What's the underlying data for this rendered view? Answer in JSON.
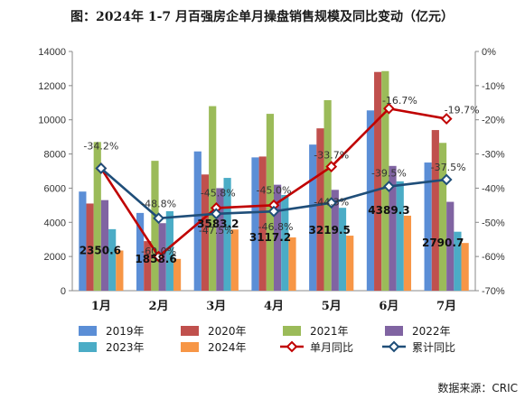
{
  "title": "图：2024年 1-7 月百强房企单月操盘销售规模及同比变动（亿元）",
  "source": "数据来源：CRIC",
  "colors": {
    "2019年": "#5b8ed6",
    "2020年": "#c0504d",
    "2021年": "#9bbb59",
    "2022年": "#8064a2",
    "2023年": "#4bacc6",
    "2024年": "#f79646",
    "单月同比": "#c00000",
    "累计同比": "#1f4e79"
  },
  "chart_data": {
    "type": "bar",
    "categories": [
      "1月",
      "2月",
      "3月",
      "4月",
      "5月",
      "6月",
      "7月"
    ],
    "ylim": [
      0,
      14000
    ],
    "y_ticks": [
      "0",
      "2000",
      "4000",
      "6000",
      "8000",
      "10000",
      "12000",
      "14000"
    ],
    "y2lim": [
      -70,
      0
    ],
    "y2_ticks": [
      "0%",
      "-10%",
      "-20%",
      "-30%",
      "-40%",
      "-50%",
      "-60%",
      "-70%"
    ],
    "series": [
      {
        "name": "2019年",
        "values": [
          5800,
          4550,
          8150,
          7800,
          8550,
          10550,
          7500
        ]
      },
      {
        "name": "2020年",
        "values": [
          5100,
          2900,
          6800,
          7850,
          9500,
          12800,
          9400
        ]
      },
      {
        "name": "2021年",
        "values": [
          8700,
          7600,
          10800,
          10350,
          11150,
          12850,
          8650
        ]
      },
      {
        "name": "2022年",
        "values": [
          5300,
          3950,
          6000,
          6200,
          5900,
          7300,
          5200
        ]
      },
      {
        "name": "2023年",
        "values": [
          3600,
          4650,
          6600,
          5600,
          4850,
          6400,
          3450
        ]
      },
      {
        "name": "2024年",
        "values": [
          2350.6,
          1858.6,
          3583.2,
          3117.2,
          3219.5,
          4389.3,
          2790.7
        ]
      }
    ],
    "value_labels": [
      "2350.6",
      "1858.6",
      "3583.2",
      "3117.2",
      "3219.5",
      "4389.3",
      "2790.7"
    ],
    "lines": [
      {
        "name": "单月同比",
        "values": [
          -34.2,
          -60.0,
          -45.8,
          -45.0,
          -33.7,
          -16.7,
          -19.7
        ],
        "labels": [
          "-34.2%",
          "-60.0%",
          "-45.8%",
          "-45.0%",
          "-33.7%",
          "-16.7%",
          "-19.7%"
        ]
      },
      {
        "name": "累计同比",
        "values": [
          -34.2,
          -48.8,
          -47.5,
          -46.8,
          -44.3,
          -39.5,
          -37.5
        ],
        "labels": [
          "",
          "-48.8%",
          "-47.5%",
          "-46.8%",
          "-44.3%",
          "-39.5%",
          "-37.5%"
        ]
      }
    ],
    "legend": [
      "2019年",
      "2020年",
      "2021年",
      "2022年",
      "2023年",
      "2024年",
      "单月同比",
      "累计同比"
    ],
    "legend_position": "bottom",
    "grid": false
  }
}
